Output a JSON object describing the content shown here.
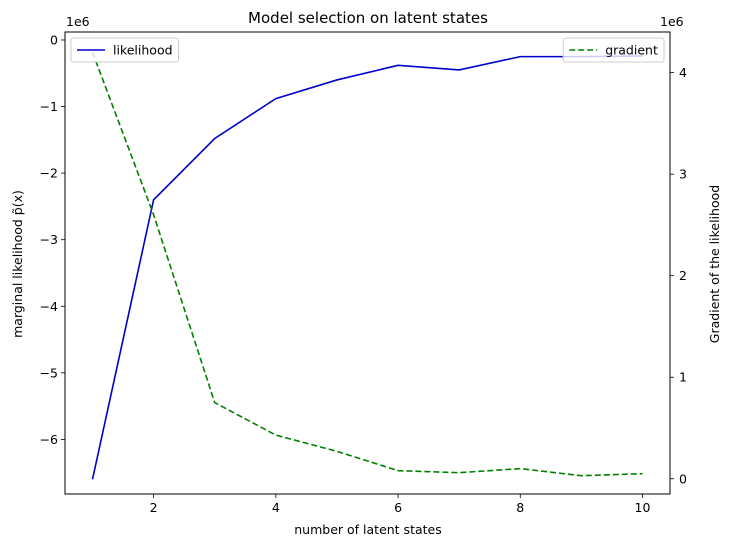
{
  "chart_data": {
    "type": "line",
    "title": "Model selection on latent states",
    "xlabel": "number of latent states",
    "ylabel_left": "marginal likelihood p̃(x)",
    "ylabel_right": "Gradient of the likelihood",
    "left_offset_label": "1e6",
    "right_offset_label": "1e6",
    "x": [
      1,
      2,
      3,
      4,
      5,
      6,
      7,
      8,
      9,
      10
    ],
    "xlim": [
      0.55,
      10.45
    ],
    "ylim_left": [
      -6.82,
      0.12
    ],
    "ylim_right": [
      -0.15,
      4.4
    ],
    "x_ticks": [
      2,
      4,
      6,
      8,
      10
    ],
    "x_tick_labels": [
      "2",
      "4",
      "6",
      "8",
      "10"
    ],
    "left_ticks": [
      0,
      -1,
      -2,
      -3,
      -4,
      -5,
      -6
    ],
    "left_tick_labels": [
      "0",
      "−1",
      "−2",
      "−3",
      "−4",
      "−5",
      "−6"
    ],
    "right_ticks": [
      0,
      1,
      2,
      3,
      4
    ],
    "right_tick_labels": [
      "0",
      "1",
      "2",
      "3",
      "4"
    ],
    "series": [
      {
        "name": "likelihood",
        "axis": "left",
        "color": "#0000cc",
        "style": "solid",
        "values": [
          -6.6,
          -2.4,
          -1.48,
          -0.88,
          -0.6,
          -0.38,
          -0.45,
          -0.25,
          -0.25,
          -0.24
        ]
      },
      {
        "name": "gradient",
        "axis": "right",
        "color": "#008000",
        "style": "dashed",
        "values": [
          4.2,
          2.6,
          0.75,
          0.43,
          0.27,
          0.08,
          0.06,
          0.1,
          0.03,
          0.05
        ]
      }
    ],
    "legends": [
      {
        "series": "likelihood",
        "placement": "upper-left"
      },
      {
        "series": "gradient",
        "placement": "upper-right"
      }
    ],
    "grid": false
  }
}
